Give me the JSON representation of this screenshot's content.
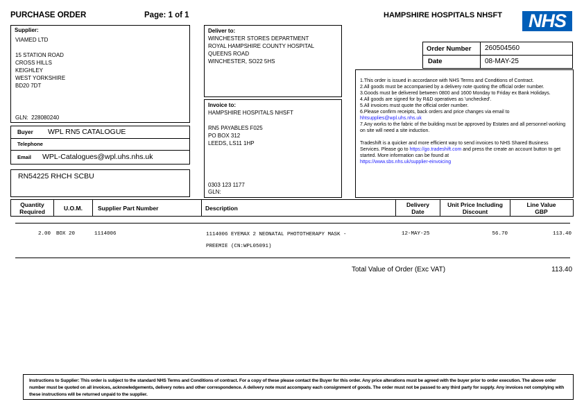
{
  "header": {
    "title": "PURCHASE ORDER",
    "page": "Page: 1 of 1",
    "org": "HAMPSHIRE HOSPITALS NHSFT",
    "logo_text": "NHS",
    "logo_color": "#005EB8"
  },
  "supplier": {
    "label": "Supplier:",
    "lines": [
      "VIAMED LTD",
      "",
      "15 STATION ROAD",
      "CROSS HILLS",
      "KEIGHLEY",
      "WEST YORKSHIRE",
      "BD20 7DT"
    ],
    "gln_label": "GLN:",
    "gln": "228080240"
  },
  "buyer": {
    "buyer_label": "Buyer",
    "buyer": "WPL RN5 CATALOGUE",
    "telephone_label": "Telephone",
    "telephone": "",
    "email_label": "Email",
    "email": "WPL-Catalogues@wpl.uhs.nhs.uk"
  },
  "reference": "RN54225 RHCH SCBU",
  "deliver": {
    "label": "Deliver to:",
    "lines": [
      "WINCHESTER STORES DEPARTMENT",
      "ROYAL HAMPSHIRE COUNTY HOSPITAL",
      "QUEENS ROAD",
      "WINCHESTER, SO22 5HS"
    ]
  },
  "invoice": {
    "label": "Invoice to:",
    "lines": [
      "HAMPSHIRE HOSPITALS NHSFT",
      "",
      "RN5 PAYABLES F025",
      "PO BOX 312",
      "LEEDS, LS11 1HP"
    ],
    "phone": "0303 123 1177",
    "gln_label": "GLN:"
  },
  "order": {
    "number_label": "Order Number",
    "number": "260504560",
    "date_label": "Date",
    "date": "08-MAY-25"
  },
  "terms": {
    "items": [
      "1.This order is issued in accordance with NHS Terms and Conditions of Contract.",
      "2.All goods must be accompanied by a delivery note quoting the official order number.",
      "3.Goods must be delivered between 0800 and 1600 Monday to Friday ex Bank Holidays.",
      "4.All goods are signed for by R&D operatives as 'unchecked'.",
      "5.All invoices must quote the official order number.",
      "6.Please confirm receipts, back orders and price changes via email to"
    ],
    "email_link": "hhtsupplies@wpl.uhs.nhs.uk",
    "item7": "7.Any works to the fabric of the building must be approved by Estates and all personnel working on site will need a site induction.",
    "tradeshift_pre": "Tradeshift is a quicker and more efficient way to send invoices to NHS Shared Business Services. Please go to ",
    "tradeshift_link": "https://go.tradeshift.com",
    "tradeshift_post": " and press the create an account button to get started.  More information can be found at",
    "sbs_link": "https://www.sbs.nhs.uk/supplier-einvoicing"
  },
  "table": {
    "headers": [
      "Quantity Required",
      "U.O.M.",
      "Supplier Part Number",
      "Description",
      "Delivery Date",
      "Unit Price Including Discount",
      "Line Value GBP"
    ],
    "rows": [
      {
        "qty": "2.00",
        "uom": "BOX 20",
        "part": "1114006",
        "desc1": "1114006 EYEMAX 2 NEONATAL PHOTOTHERAPY MASK -",
        "desc2": "PREEMIE (CN:WPL05091)",
        "date": "12-MAY-25",
        "price": "56.70",
        "value": "113.40"
      }
    ]
  },
  "total": {
    "label": "Total Value of Order (Exc VAT)",
    "value": "113.40"
  },
  "footer": "Instructions to Supplier: This order is subject to the standard NHS Terms and Conditions of contract. For a copy of these please contact the Buyer for this order. Any price alterations must be agreed with the buyer prior to order execution. The above order number must be quoted on all invoices, acknowledgements, delivery notes and other correspondence. A delivery note must accompany each consignment of goods. The order must not be passed to any third party for supply. Any invoices not complying with these instructions will be returned unpaid to the supplier."
}
